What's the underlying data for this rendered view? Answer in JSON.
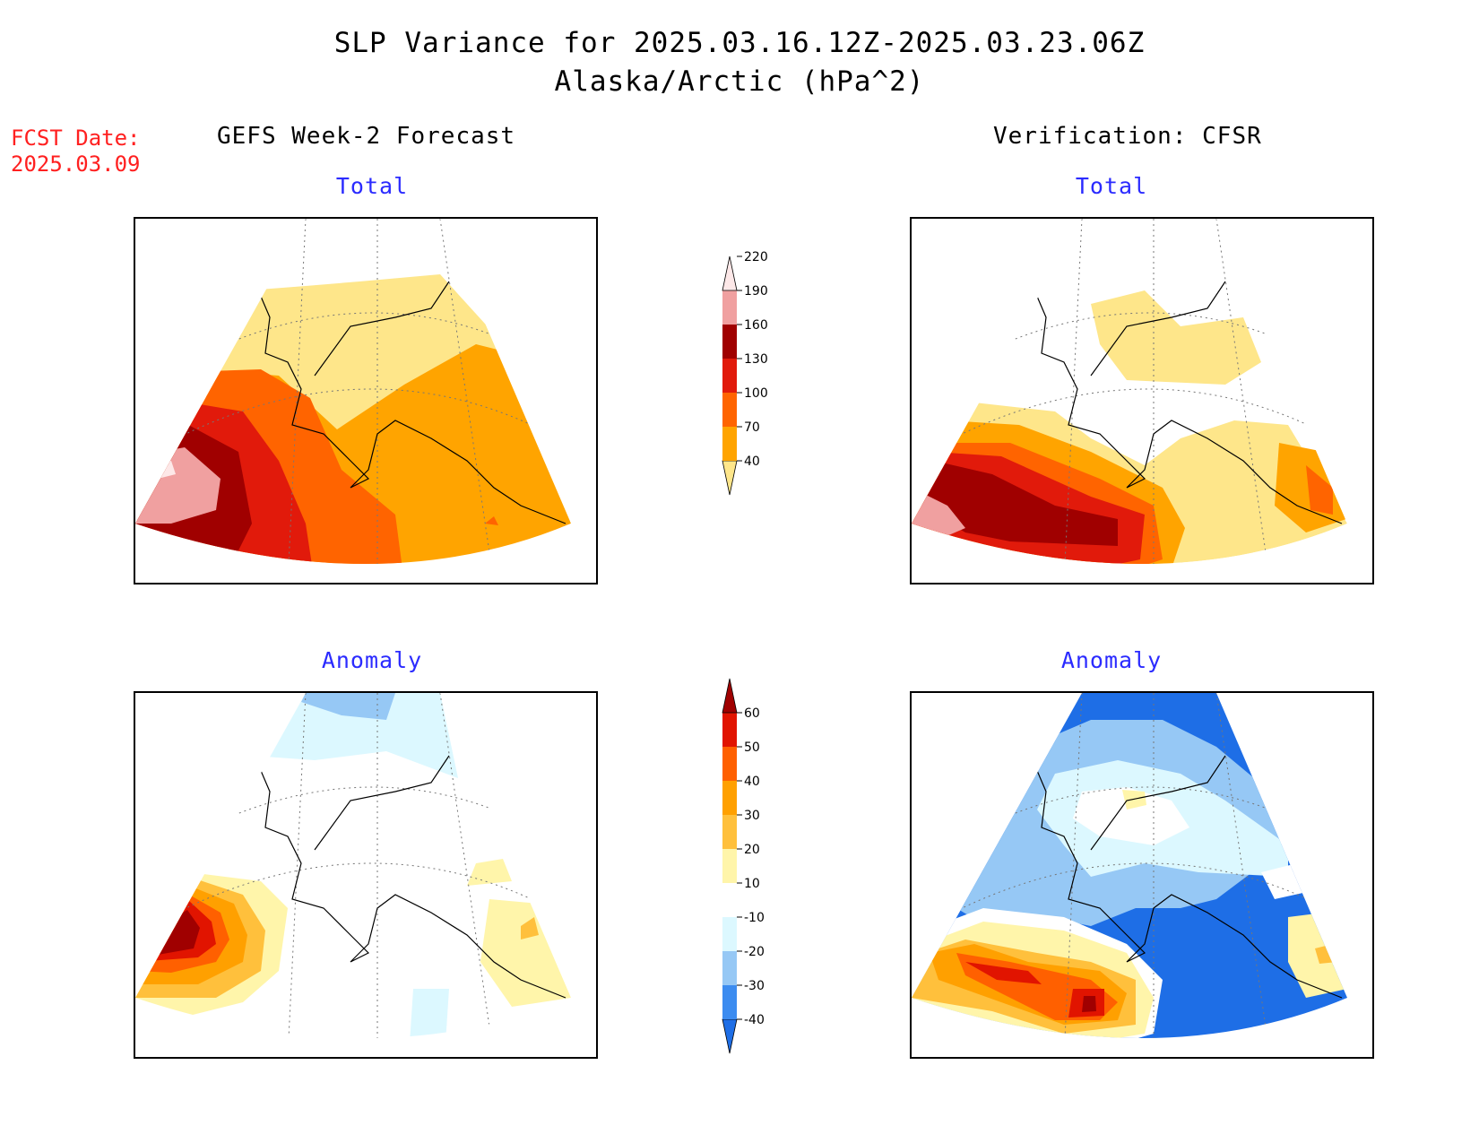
{
  "title": {
    "line1": "SLP Variance for 2025.03.16.12Z-2025.03.23.06Z",
    "line2": "Alaska/Arctic (hPa^2)"
  },
  "fcst_date": {
    "label": "FCST Date:",
    "value": "2025.03.09"
  },
  "columns": {
    "left": "GEFS Week-2 Forecast",
    "right": "Verification: CFSR"
  },
  "panels": {
    "forecast_total": "Total",
    "verification_total": "Total",
    "forecast_anomaly": "Anomaly",
    "verification_anomaly": "Anomaly"
  },
  "colorbars": {
    "total": {
      "levels": [
        "40",
        "70",
        "100",
        "130",
        "160",
        "190",
        "220"
      ],
      "colors": [
        "#fee68a",
        "#ffa400",
        "#ff6400",
        "#e11a0b",
        "#a00000",
        "#f0a0a0",
        "#fde8e8"
      ]
    },
    "anomaly": {
      "levels": [
        "-40",
        "-30",
        "-20",
        "-10",
        "10",
        "20",
        "30",
        "40",
        "50",
        "60"
      ],
      "colors": [
        "#1e6ee6",
        "#3c8cf0",
        "#96c8f5",
        "#dcf8ff",
        "#ffffff",
        "#fff5aa",
        "#ffc03c",
        "#ffa000",
        "#ff6000",
        "#e11400",
        "#a00000"
      ]
    }
  }
}
